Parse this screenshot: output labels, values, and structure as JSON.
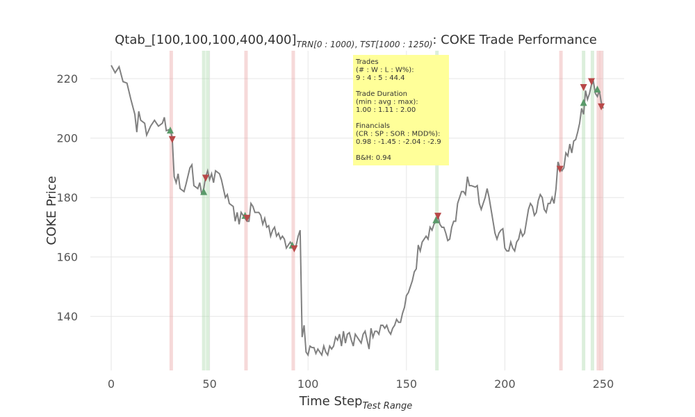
{
  "chart_data": {
    "type": "line",
    "title_prefix": "Qtab_[100,100,100,400,400]",
    "title_sub_train": "TRN[0 : 1000)",
    "title_mid": ", ",
    "title_sub_test": "TST[1000 : 1250)",
    "title_suffix": ": COKE Trade Performance",
    "x_label": "Time Step",
    "x_label_sub": "Test Range",
    "y_label": "COKE Price",
    "xlim": [
      -10.6,
      260.6
    ],
    "ylim": [
      121.8,
      229.4
    ],
    "xticks": [
      0,
      50,
      100,
      150,
      200,
      250
    ],
    "yticks": [
      140,
      160,
      180,
      200,
      220
    ],
    "grid": true,
    "series": [
      {
        "color": "#808080",
        "x": [
          0,
          2,
          4,
          6,
          8,
          10,
          12,
          13,
          14,
          15,
          17,
          18,
          20,
          22,
          24,
          26,
          27,
          28,
          30,
          31,
          32,
          33,
          34,
          35,
          37,
          38,
          40,
          41,
          42,
          44,
          45,
          46,
          47,
          48,
          49,
          50,
          51,
          52,
          53,
          55,
          56,
          57,
          58,
          59,
          60,
          62,
          63,
          64,
          65,
          66,
          67,
          69,
          70,
          71,
          72,
          73,
          75,
          76,
          77,
          78,
          79,
          80,
          81,
          82,
          83,
          84,
          85,
          86,
          87,
          88,
          89,
          90,
          91,
          92,
          93,
          94,
          95,
          96,
          97,
          98,
          99,
          100,
          101,
          102,
          103,
          104,
          105,
          106,
          107,
          108,
          109,
          110,
          111,
          112,
          113,
          114,
          115,
          116,
          117,
          118,
          119,
          120,
          121,
          122,
          123,
          124,
          125,
          126,
          127,
          128,
          129,
          130,
          131,
          132,
          133,
          134,
          135,
          136,
          137,
          138,
          139,
          140,
          141,
          142,
          143,
          144,
          145,
          146,
          147,
          148,
          149,
          150,
          151,
          152,
          153,
          154,
          155,
          156,
          157,
          158,
          159,
          160,
          161,
          162,
          163,
          164,
          165,
          166,
          167,
          168,
          169,
          170,
          171,
          172,
          173,
          174,
          175,
          176,
          177,
          178,
          179,
          180,
          181,
          182,
          183,
          185,
          186,
          187,
          188,
          189,
          190,
          191,
          192,
          193,
          194,
          195,
          196,
          197,
          198,
          199,
          200,
          201,
          202,
          203,
          204,
          205,
          206,
          207,
          208,
          209,
          210,
          211,
          212,
          213,
          214,
          215,
          216,
          217,
          218,
          219,
          220,
          221,
          222,
          223,
          224,
          225,
          226,
          227,
          228,
          229,
          230,
          231,
          232,
          233,
          234,
          235,
          236,
          237,
          238,
          239,
          240,
          241,
          242,
          243,
          244,
          245,
          246,
          247,
          248,
          249,
          250
        ],
        "values": [
          224.5,
          222,
          224,
          219,
          218.5,
          213,
          208,
          202,
          209,
          206,
          205,
          201,
          204,
          206,
          204,
          205,
          207,
          202.5,
          203,
          200,
          187,
          185,
          188,
          183,
          182,
          184.5,
          190,
          191,
          184,
          183,
          185,
          181,
          183,
          187,
          189,
          186,
          188,
          185,
          189,
          188,
          186,
          183,
          180,
          181,
          178,
          177,
          172,
          175,
          171,
          175,
          174,
          172,
          172,
          178,
          177,
          175,
          175,
          174,
          171,
          173,
          170,
          170.5,
          167,
          169,
          170,
          167,
          168,
          166,
          167,
          166,
          163,
          164,
          165,
          164,
          163,
          164,
          167,
          169,
          133,
          137,
          128,
          127,
          130,
          129.5,
          129.5,
          127.5,
          129,
          128,
          127,
          130,
          128,
          127,
          130,
          129,
          130,
          133,
          132,
          134,
          130,
          135,
          131,
          134,
          134.5,
          132,
          130,
          134,
          133,
          132,
          131,
          134,
          135,
          132,
          129,
          136,
          133,
          135,
          135,
          134,
          137,
          137,
          136,
          137,
          135,
          134,
          136,
          137,
          139,
          138,
          138,
          141,
          143,
          147,
          148,
          150,
          152,
          155,
          156,
          164,
          162,
          165,
          166,
          167,
          166,
          170,
          169,
          171,
          172,
          174,
          171,
          170,
          170,
          168,
          165.5,
          166,
          170,
          172,
          172,
          178,
          180,
          182,
          182,
          181,
          187,
          184,
          184,
          183.5,
          184,
          178,
          176,
          178,
          180,
          183,
          180,
          176,
          172,
          168,
          166,
          168,
          169,
          169.5,
          163,
          162,
          162,
          165,
          163,
          162,
          165,
          166,
          169,
          167,
          168,
          172,
          176,
          178,
          177,
          174,
          175,
          179,
          181,
          180,
          176,
          175,
          178,
          178,
          180,
          178,
          183,
          192,
          190,
          189,
          190,
          195,
          194,
          198,
          195,
          199,
          199.5,
          202,
          205,
          210,
          208,
          216,
          213,
          215,
          218,
          219,
          215,
          214,
          216,
          212,
          210
        ]
      }
    ],
    "bands": [
      {
        "color": "#e8a0a0",
        "x": [
          30.5,
          68.5,
          92.5,
          228.5,
          247.5,
          249
        ]
      },
      {
        "color": "#a8d8a8",
        "x": [
          47,
          49,
          165.5,
          240,
          244.5
        ]
      }
    ],
    "markers": {
      "buy": {
        "color": "#5a9a6a",
        "x": [
          30,
          47,
          68,
          92,
          165,
          240,
          247
        ],
        "y": [
          202.7,
          182,
          174,
          164,
          172.5,
          212,
          216.5
        ]
      },
      "sell": {
        "color": "#b84848",
        "x": [
          31,
          48,
          69,
          93,
          166,
          228,
          240,
          244,
          249
        ],
        "y": [
          199.5,
          186.5,
          173,
          162.7,
          173.7,
          189.5,
          217,
          219,
          210.5
        ]
      }
    },
    "annotation": [
      [
        "Trades",
        "(# : W : L : W%):",
        "9 : 4 : 5 : 44.4"
      ],
      [
        "Trade Duration",
        "(min : avg : max):",
        "1.00 : 1.11 : 2.00"
      ],
      [
        "Financials",
        "(CR : SP : SOR : MDD%):",
        "0.98 : -1.45 : -2.04 : -2.9"
      ],
      [
        "B&H: 0.94"
      ]
    ]
  }
}
